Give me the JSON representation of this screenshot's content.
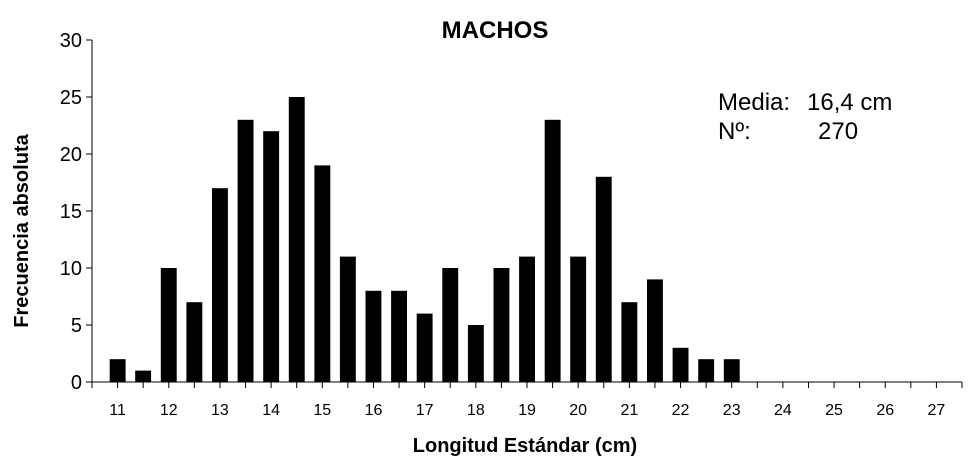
{
  "chart_data": {
    "type": "bar",
    "title": "MACHOS",
    "xlabel": "Longitud Estándar (cm)",
    "ylabel": "Frecuencia absoluta",
    "ylim": [
      0,
      30
    ],
    "yticks": [
      0,
      5,
      10,
      15,
      20,
      25,
      30
    ],
    "xlim": [
      10.5,
      27.5
    ],
    "xticks": [
      "11",
      "12",
      "13",
      "14",
      "15",
      "16",
      "17",
      "18",
      "19",
      "20",
      "21",
      "22",
      "23",
      "24",
      "25",
      "26",
      "27"
    ],
    "x": [
      11,
      11.5,
      12,
      12.5,
      13,
      13.5,
      14,
      14.5,
      15,
      15.5,
      16,
      16.5,
      17,
      17.5,
      18,
      18.5,
      19,
      19.5,
      20,
      20.5,
      21,
      21.5,
      22,
      22.5,
      23
    ],
    "values": [
      2,
      1,
      10,
      7,
      17,
      23,
      22,
      25,
      19,
      11,
      8,
      8,
      6,
      10,
      5,
      10,
      11,
      23,
      11,
      18,
      7,
      9,
      3,
      2,
      2
    ],
    "bar_color": "#000000",
    "grid": false,
    "legend": "none",
    "annotations": [
      {
        "label": "Media:",
        "value": "16,4 cm"
      },
      {
        "label": "Nº:",
        "value": "270"
      }
    ]
  }
}
